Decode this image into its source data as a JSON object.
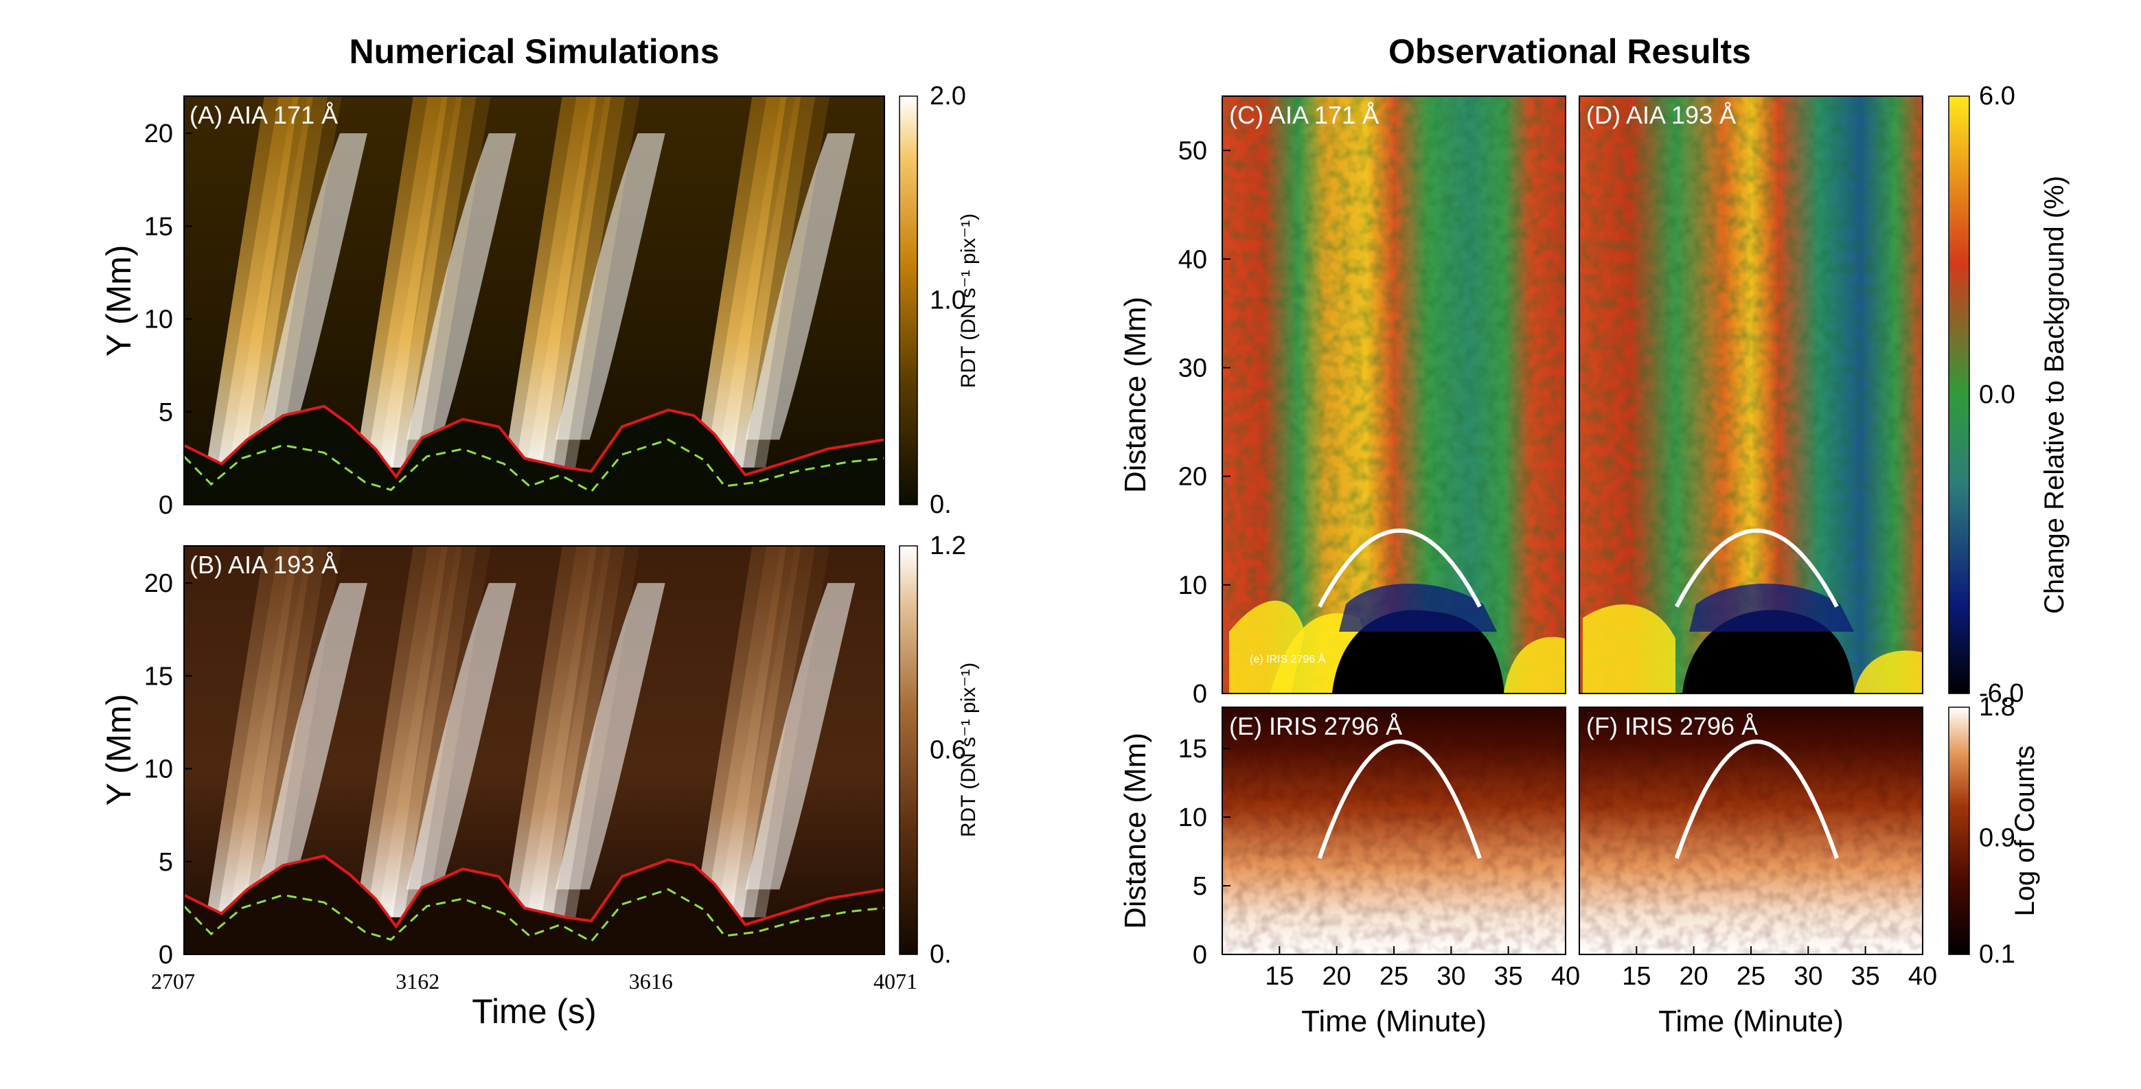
{
  "titles": {
    "left": "Numerical Simulations",
    "right": "Observational Results"
  },
  "colors": {
    "aia171_scale": [
      "#0c0c00",
      "#5a3c00",
      "#c8820a",
      "#f5c66a",
      "#ffffff"
    ],
    "aia193_scale": [
      "#120800",
      "#5b2e10",
      "#a56a35",
      "#e2bf94",
      "#ffffff"
    ],
    "change_scale": [
      "#000000",
      "#0b1a7a",
      "#2e7d7a",
      "#2f9b3a",
      "#d33a1a",
      "#ffe81a"
    ],
    "counts_scale": [
      "#000000",
      "#4a0a02",
      "#a0360a",
      "#e69a5a",
      "#ffffff"
    ],
    "boundary_line": "#e01818",
    "dashed_line": "#8fe040",
    "parabola": "#ffffff"
  },
  "chart_data": [
    {
      "type": "heatmap",
      "panel": "(A) AIA 171 Å",
      "xlim": [
        2707,
        4071
      ],
      "x_ticks": [
        "2707",
        "3162",
        "3616",
        "4071"
      ],
      "ylim": [
        0,
        22
      ],
      "y_ticks": [
        "0",
        "5",
        "10",
        "15",
        "20"
      ],
      "ylabel": "Y (Mm)",
      "colorbar": {
        "ticks": [
          "2.0",
          "1.0",
          "0."
        ],
        "label": "RDT (DN s⁻¹ pix⁻¹)",
        "range": [
          0,
          2.0
        ]
      },
      "bursts_x": [
        2750,
        3040,
        3330,
        3700
      ]
    },
    {
      "type": "heatmap",
      "panel": "(B) AIA 193 Å",
      "xlim": [
        2707,
        4071
      ],
      "x_ticks": [
        "2707",
        "3162",
        "3616",
        "4071"
      ],
      "xlabel": "Time  (s)",
      "ylim": [
        0,
        22
      ],
      "y_ticks": [
        "0",
        "5",
        "10",
        "15",
        "20"
      ],
      "ylabel": "Y (Mm)",
      "colorbar": {
        "ticks": [
          "1.2",
          "0.6",
          "0."
        ],
        "label": "RDT (DN s⁻¹ pix⁻¹)",
        "range": [
          0,
          1.2
        ]
      }
    },
    {
      "type": "heatmap",
      "panel": "(C) AIA 171 Å",
      "xlim": [
        10,
        40
      ],
      "ylim": [
        0,
        55
      ],
      "y_ticks": [
        "0",
        "10",
        "20",
        "30",
        "40",
        "50"
      ],
      "ylabel": "Distance (Mm)",
      "inset_label": "(e) IRIS 2796 Å",
      "parabola": {
        "x_start": 18.5,
        "x_peak": 25.5,
        "x_end": 32.5,
        "y_base": 8,
        "y_peak": 15
      }
    },
    {
      "type": "heatmap",
      "panel": "(D) AIA 193 Å",
      "xlim": [
        10,
        40
      ],
      "ylim": [
        0,
        55
      ],
      "colorbar": {
        "ticks": [
          "6.0",
          "0.0",
          "-6.0"
        ],
        "label": "Change Relative to Background (%)",
        "range": [
          -6.0,
          6.0
        ]
      },
      "parabola": {
        "x_start": 18.5,
        "x_peak": 25.5,
        "x_end": 32.5,
        "y_base": 8,
        "y_peak": 15
      }
    },
    {
      "type": "heatmap",
      "panel": "(E) IRIS 2796 Å",
      "xlim": [
        10,
        40
      ],
      "x_ticks": [
        "15",
        "20",
        "25",
        "30",
        "35",
        "40"
      ],
      "xlabel": "Time (Minute)",
      "ylim": [
        0,
        18
      ],
      "y_ticks": [
        "0",
        "5",
        "10",
        "15"
      ],
      "ylabel": "Distance (Mm)",
      "parabola": {
        "x_start": 18.5,
        "x_peak": 25.5,
        "x_end": 32.5,
        "y_base": 7,
        "y_peak": 15.5
      }
    },
    {
      "type": "heatmap",
      "panel": "(F) IRIS 2796 Å",
      "xlim": [
        10,
        40
      ],
      "x_ticks": [
        "15",
        "20",
        "25",
        "30",
        "35",
        "40"
      ],
      "xlabel": "Time (Minute)",
      "ylim": [
        0,
        18
      ],
      "colorbar": {
        "ticks": [
          "1.8",
          "0.9",
          "0.1"
        ],
        "label": "Log of Counts",
        "range": [
          0.1,
          1.8
        ]
      },
      "parabola": {
        "x_start": 18.5,
        "x_peak": 25.5,
        "x_end": 32.5,
        "y_base": 7,
        "y_peak": 15.5
      }
    }
  ]
}
